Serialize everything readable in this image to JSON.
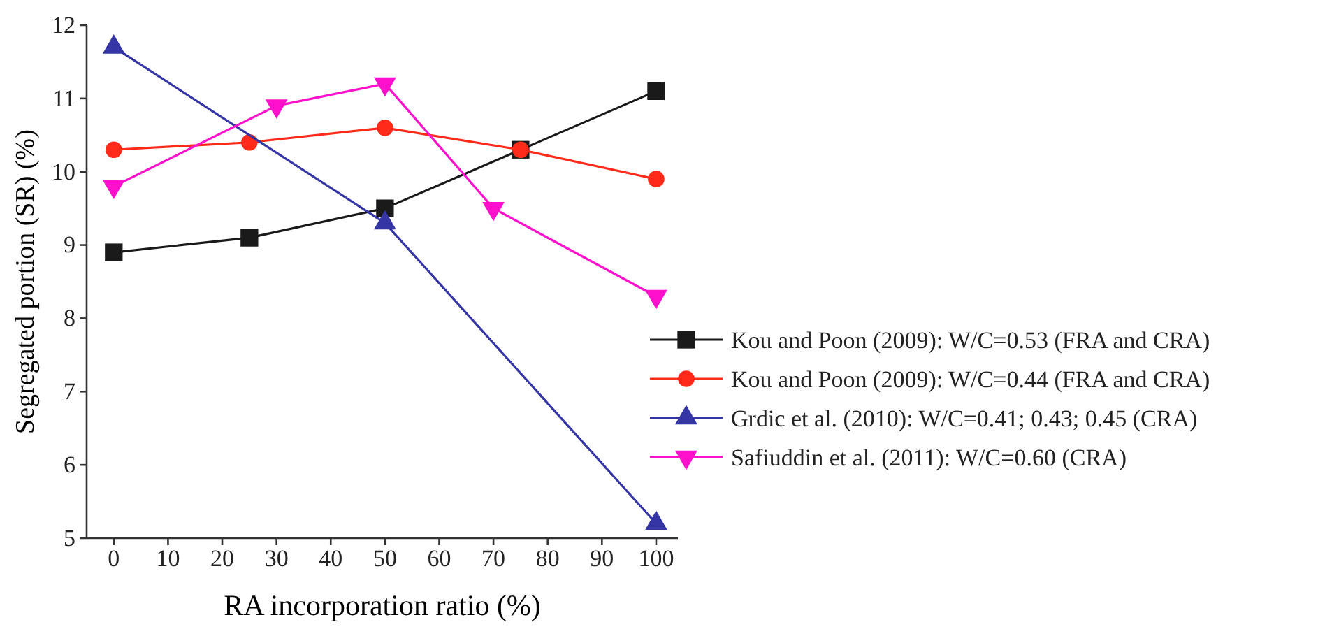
{
  "chart_data": {
    "type": "line",
    "xlabel": "RA  incorporation ratio (%)",
    "ylabel": "Segregated portion (SR) (%)",
    "xlim": [
      -5,
      104
    ],
    "xticks": [
      0,
      10,
      20,
      30,
      40,
      50,
      60,
      70,
      80,
      90,
      100
    ],
    "ylim": [
      5,
      12
    ],
    "yticks": [
      5,
      6,
      7,
      8,
      9,
      10,
      11,
      12
    ],
    "legend": "right",
    "grid": false,
    "line_style": "solid",
    "series": [
      {
        "name": "Kou and Poon (2009): W/C=0.53 (FRA and CRA)",
        "color": "#1a1a1a",
        "marker": "square",
        "x": [
          0,
          25,
          50,
          75,
          100
        ],
        "values": [
          8.9,
          9.1,
          9.5,
          10.3,
          11.1
        ]
      },
      {
        "name": "Kou and Poon (2009): W/C=0.44 (FRA and CRA)",
        "color": "#ff2a1a",
        "marker": "circle",
        "x": [
          0,
          25,
          50,
          75,
          100
        ],
        "values": [
          10.3,
          10.4,
          10.6,
          10.3,
          9.9
        ]
      },
      {
        "name": "Grdic et al. (2010): W/C=0.41; 0.43; 0.45 (CRA)",
        "color": "#3535a5",
        "marker": "triangle",
        "x": [
          0,
          50,
          100
        ],
        "values": [
          11.7,
          9.3,
          5.2
        ]
      },
      {
        "name": "Safiuddin et al. (2011): W/C=0.60 (CRA)",
        "color": "#ff10cc",
        "marker": "triangle-down",
        "x": [
          0,
          30,
          50,
          70,
          100
        ],
        "values": [
          9.8,
          10.9,
          11.2,
          9.5,
          8.3
        ]
      }
    ]
  }
}
